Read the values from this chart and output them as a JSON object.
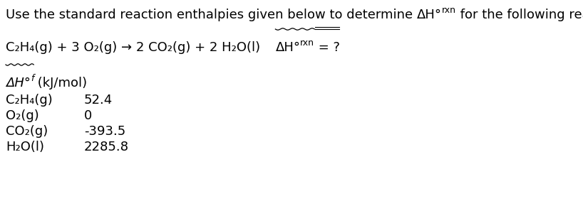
{
  "line1_part1": "Use the standard reaction enthalpies given below to determine ",
  "line1_dh": "ΔH°",
  "line1_sub": "rxn",
  "line1_part2": " for the following reaction:",
  "reaction_part": "C₂H₄(g) + 3 O₂(g) → 2 CO₂(g) + 2 H₂O(l)   ",
  "delta_h": "ΔH°",
  "delta_h_sub": "rxn",
  "eq_part": " = ?",
  "header_dh": "ΔH°",
  "header_sub": "f",
  "header_rest": " (kJ/mol)",
  "species": [
    "C₂H₄(g)",
    "O₂(g)",
    "CO₂(g)",
    "H₂O(l)"
  ],
  "values": [
    "52.4",
    "0",
    "-393.5",
    "2285.8"
  ],
  "bg_color": "#ffffff",
  "text_color": "#000000",
  "fs_main": 13,
  "fs_sub": 9,
  "fig_w": 8.18,
  "fig_h": 2.9,
  "dpi": 100
}
